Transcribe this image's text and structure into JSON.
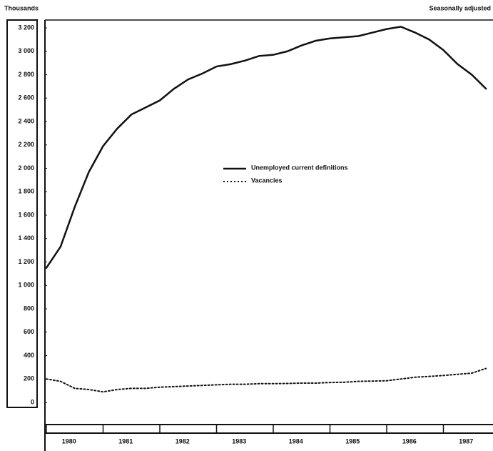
{
  "chart_data": {
    "type": "line",
    "y_axis_label": "Thousands",
    "note": "Seasonally adjusted",
    "years": [
      "1980",
      "1981",
      "1982",
      "1983",
      "1984",
      "1985",
      "1986",
      "1987"
    ],
    "x": [
      1980,
      1980.25,
      1980.5,
      1980.75,
      1981,
      1981.25,
      1981.5,
      1981.75,
      1982,
      1982.25,
      1982.5,
      1982.75,
      1983,
      1983.25,
      1983.5,
      1983.75,
      1984,
      1984.25,
      1984.5,
      1984.75,
      1985,
      1985.25,
      1985.5,
      1985.75,
      1986,
      1986.25,
      1986.5,
      1986.75,
      1987,
      1987.25,
      1987.5,
      1987.75
    ],
    "xlim": [
      1980,
      1987.9
    ],
    "ylim": [
      0,
      3200
    ],
    "yticks": [
      {
        "value": 3200,
        "label": "3 200"
      },
      {
        "value": 3000,
        "label": "3 000"
      },
      {
        "value": 2800,
        "label": "2 800"
      },
      {
        "value": 2600,
        "label": "2 600"
      },
      {
        "value": 2400,
        "label": "2 400"
      },
      {
        "value": 2200,
        "label": "2 200"
      },
      {
        "value": 2000,
        "label": "2 000"
      },
      {
        "value": 1800,
        "label": "1 800"
      },
      {
        "value": 1600,
        "label": "1 600"
      },
      {
        "value": 1400,
        "label": "1 400"
      },
      {
        "value": 1200,
        "label": "1 200"
      },
      {
        "value": 1000,
        "label": "1 000"
      },
      800,
      600,
      400,
      200,
      0
    ],
    "series": [
      {
        "name": "Unemployed current definitions",
        "color": "#111111",
        "style": "solid",
        "values": [
          1150,
          1330,
          1670,
          1970,
          2190,
          2340,
          2460,
          2520,
          2580,
          2680,
          2760,
          2810,
          2870,
          2890,
          2920,
          2960,
          2970,
          3000,
          3050,
          3090,
          3110,
          3120,
          3130,
          3160,
          3190,
          3210,
          3160,
          3100,
          3010,
          2890,
          2800,
          2680
        ]
      },
      {
        "name": "Vacancies",
        "color": "#111111",
        "style": "dotted",
        "values": [
          200,
          180,
          120,
          110,
          90,
          110,
          120,
          120,
          130,
          135,
          140,
          145,
          150,
          155,
          155,
          160,
          160,
          162,
          165,
          165,
          170,
          172,
          180,
          182,
          185,
          200,
          215,
          222,
          230,
          240,
          250,
          290
        ]
      }
    ]
  }
}
